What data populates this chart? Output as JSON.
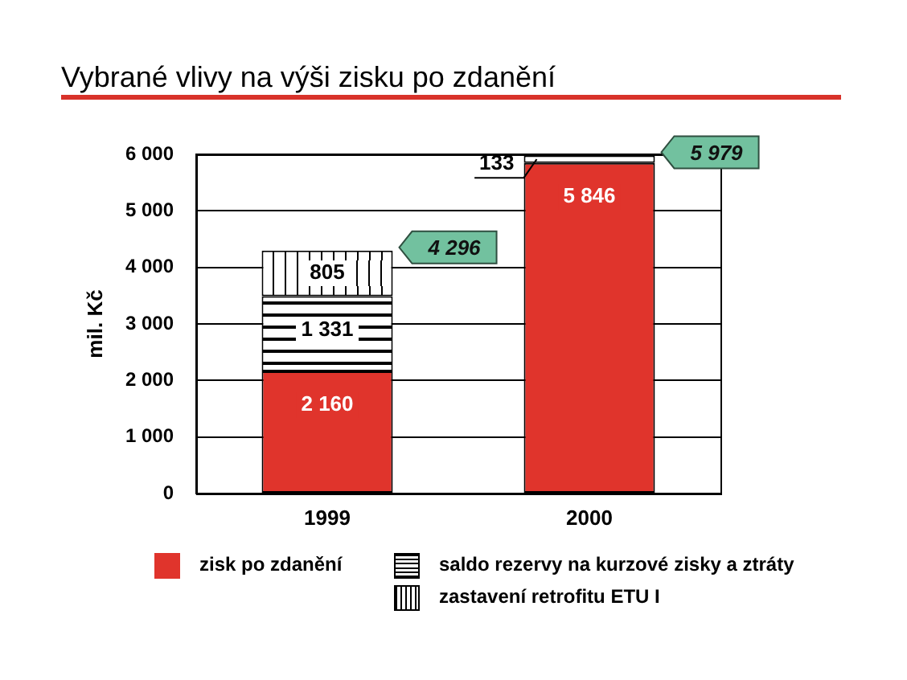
{
  "chart_data": {
    "type": "bar",
    "title": "Vybrané vlivy na výši zisku po zdanění",
    "ylabel": "mil. Kč",
    "categories": [
      "1999",
      "2000"
    ],
    "stacked": true,
    "series": [
      {
        "name": "zisk po zdanění",
        "color": "#e0342c",
        "values": [
          2160,
          5846
        ],
        "value_labels": [
          "2 160",
          "5 846"
        ]
      },
      {
        "name": "saldo rezervy na kurzové zisky a ztráty",
        "color": "#ffffff",
        "values": [
          1331,
          133
        ],
        "value_labels": [
          "1 331",
          "133"
        ]
      },
      {
        "name": "zastavení retrofitu ETU I",
        "color": "#ffffff",
        "values": [
          805,
          null
        ],
        "value_labels": [
          "805",
          null
        ]
      }
    ],
    "totals": [
      "4 296",
      "5 979"
    ],
    "ylim": [
      0,
      6000
    ],
    "yticks": [
      0,
      {
        "value": 1000,
        "label": "1 000"
      },
      {
        "value": 2000,
        "label": "2 000"
      },
      {
        "value": 3000,
        "label": "3 000"
      },
      {
        "value": 4000,
        "label": "4 000"
      },
      {
        "value": 5000,
        "label": "5 000"
      },
      {
        "value": 6000,
        "label": "6 000"
      }
    ],
    "grid": "y",
    "legend": "bottom"
  }
}
